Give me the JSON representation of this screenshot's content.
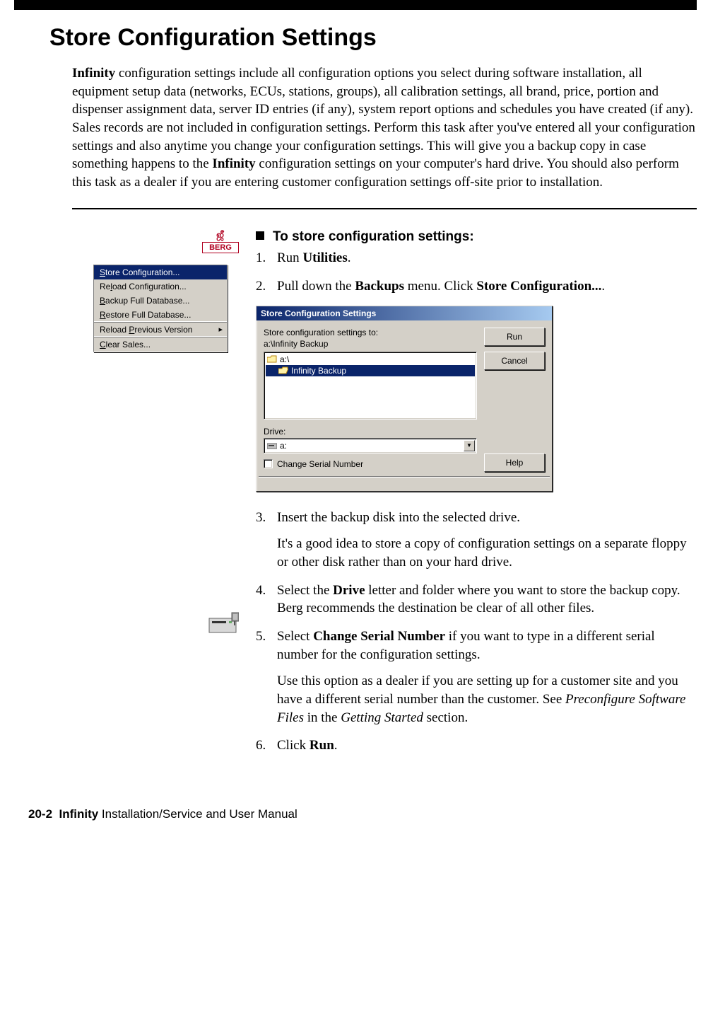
{
  "title": "Store Configuration Settings",
  "intro_html": "<b>Infinity</b> configuration settings include all configuration options you select during software installation, all equipment setup data (networks, ECUs, stations, groups), all calibration settings, all brand, price, portion and dispenser assignment data, server ID entries (if any), system report options and schedules you have created (if any). Sales records are not included in configuration settings. Perform this task after you've entered all your configuration settings and also anytime you change your configuration settings. This will give you a backup copy in case something happens to the <b>Infinity</b> configuration settings on your computer's hard drive. You should also perform this task as a dealer if you are entering customer configuration settings off-site prior to installation.",
  "section_heading": "To store configuration settings:",
  "berg_logo": {
    "top": "ஜீ",
    "label": "BERG"
  },
  "menu": {
    "groups": [
      {
        "items": [
          {
            "label": "Store Configuration...",
            "underline_index": 0,
            "selected": true
          },
          {
            "label": "Reload Configuration...",
            "underline_index": 2
          },
          {
            "label": "Backup Full Database...",
            "underline_index": 0
          },
          {
            "label": "Restore Full Database...",
            "underline_index": 0
          }
        ]
      },
      {
        "items": [
          {
            "label": "Reload Previous Version",
            "underline_index": 7,
            "submenu": true
          }
        ]
      },
      {
        "items": [
          {
            "label": "Clear Sales...",
            "underline_index": 0
          }
        ]
      }
    ]
  },
  "dialog": {
    "title": "Store Configuration Settings",
    "label_store_to": "Store configuration settings to:",
    "path_text": "a:\\Infinity Backup",
    "list_items": [
      {
        "label": "a:\\",
        "selected": false,
        "icon": "folder-closed"
      },
      {
        "label": "Infinity Backup",
        "selected": true,
        "icon": "folder-open"
      }
    ],
    "drive_label": "Drive:",
    "drive_value": "a:",
    "checkbox_label": "Change Serial Number",
    "buttons": {
      "run": "Run",
      "cancel": "Cancel",
      "help": "Help"
    }
  },
  "steps": [
    {
      "n": "1.",
      "html": "Run <b>Utilities</b>."
    },
    {
      "n": "2.",
      "html": "Pull down the <b>Backups</b> menu. Click <b>Store Configuration...</b>."
    },
    {
      "n": "3.",
      "html": "Insert the backup disk into the selected drive.",
      "note": "It's a good idea to store a copy of configuration settings on a separate floppy or other disk rather than on your hard drive."
    },
    {
      "n": "4.",
      "html": "Select the <b>Drive</b> letter and folder where you want to store the backup copy. Berg recommends the destination be clear of all other files."
    },
    {
      "n": "5.",
      "html": "Select <b>Change Serial Number</b> if you want to type in a different serial number for the configuration settings.",
      "note": "Use this option as a dealer if you are setting up for a customer site and you have a different serial number than the customer. See <span class=\"italic\">Preconfigure Software Files</span> in the <span class=\"italic\">Getting Started</span> section."
    },
    {
      "n": "6.",
      "html": "Click <b>Run</b>."
    }
  ],
  "footer_html": "<b>20-2&nbsp; Infinity</b> Installation/Service and User Manual"
}
